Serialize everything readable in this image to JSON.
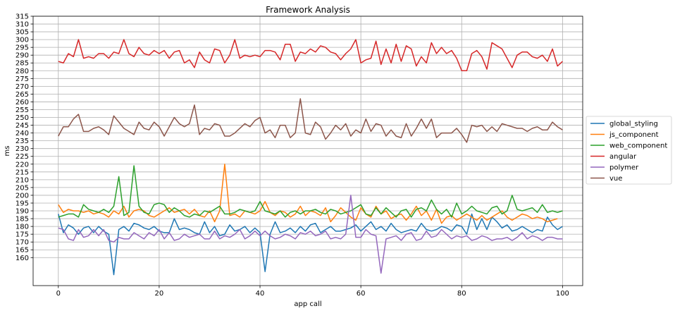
{
  "chart_data": {
    "type": "line",
    "title": "Framework Analysis",
    "xlabel": "app call",
    "ylabel": "ms",
    "xlim": [
      -5,
      104
    ],
    "ylim": [
      142,
      315
    ],
    "xticks": [
      0,
      20,
      40,
      60,
      80,
      100
    ],
    "yticks": [
      160,
      165,
      170,
      175,
      180,
      185,
      190,
      195,
      200,
      205,
      210,
      215,
      220,
      225,
      230,
      235,
      240,
      245,
      250,
      255,
      260,
      265,
      270,
      275,
      280,
      285,
      290,
      295,
      300,
      305,
      310,
      315
    ],
    "grid": true,
    "legend_position": "right",
    "series": [
      {
        "name": "global_styling",
        "color": "#1f77b4",
        "values": [
          188,
          176,
          181,
          179,
          175,
          179,
          180,
          176,
          180,
          177,
          175,
          149,
          178,
          180,
          177,
          182,
          181,
          179,
          178,
          180,
          177,
          176,
          176,
          185,
          178,
          179,
          178,
          176,
          175,
          183,
          176,
          180,
          174,
          175,
          181,
          177,
          178,
          180,
          176,
          179,
          176,
          151,
          175,
          183,
          176,
          177,
          179,
          176,
          180,
          177,
          181,
          182,
          176,
          178,
          180,
          177,
          177,
          178,
          179,
          181,
          177,
          180,
          183,
          178,
          180,
          177,
          182,
          178,
          176,
          177,
          178,
          177,
          182,
          178,
          177,
          178,
          180,
          179,
          177,
          181,
          180,
          175,
          188,
          178,
          185,
          178,
          186,
          183,
          179,
          181,
          177,
          178,
          180,
          178,
          176,
          178,
          177,
          186,
          181,
          178,
          180
        ]
      },
      {
        "name": "js_component",
        "color": "#ff7f0e",
        "values": [
          194,
          189,
          191,
          190,
          190,
          189,
          190,
          188,
          189,
          188,
          186,
          190,
          188,
          193,
          186,
          190,
          191,
          190,
          187,
          186,
          188,
          190,
          192,
          189,
          190,
          191,
          188,
          191,
          187,
          186,
          190,
          183,
          190,
          220,
          187,
          188,
          186,
          190,
          189,
          188,
          190,
          196,
          189,
          187,
          190,
          189,
          186,
          188,
          193,
          187,
          190,
          189,
          187,
          192,
          183,
          187,
          192,
          189,
          186,
          184,
          192,
          188,
          186,
          193,
          188,
          190,
          185,
          187,
          188,
          184,
          188,
          193,
          187,
          190,
          184,
          191,
          182,
          186,
          187,
          184,
          186,
          188,
          186,
          184,
          187,
          184,
          186,
          188,
          190,
          186,
          184,
          186,
          188,
          187,
          185,
          186,
          185,
          183,
          184,
          185
        ]
      },
      {
        "name": "web_component",
        "color": "#2ca02c",
        "values": [
          186,
          187,
          188,
          188,
          186,
          194,
          191,
          190,
          189,
          191,
          189,
          193,
          212,
          187,
          189,
          219,
          193,
          189,
          188,
          194,
          195,
          194,
          189,
          192,
          190,
          187,
          186,
          188,
          187,
          190,
          189,
          191,
          193,
          188,
          188,
          189,
          191,
          190,
          189,
          190,
          196,
          190,
          189,
          188,
          190,
          186,
          189,
          190,
          188,
          190,
          190,
          191,
          189,
          188,
          191,
          190,
          188,
          189,
          190,
          192,
          194,
          188,
          187,
          192,
          188,
          192,
          189,
          186,
          190,
          191,
          186,
          191,
          192,
          190,
          197,
          191,
          188,
          191,
          186,
          195,
          188,
          190,
          193,
          190,
          189,
          188,
          192,
          193,
          188,
          190,
          200,
          191,
          190,
          191,
          192,
          189,
          194,
          189,
          190,
          189,
          190
        ]
      },
      {
        "name": "angular",
        "color": "#d62728",
        "values": [
          286,
          285,
          291,
          289,
          300,
          288,
          289,
          288,
          291,
          291,
          288,
          292,
          291,
          300,
          291,
          289,
          295,
          291,
          290,
          293,
          291,
          293,
          288,
          292,
          293,
          285,
          287,
          282,
          292,
          287,
          285,
          294,
          293,
          285,
          290,
          300,
          288,
          290,
          289,
          290,
          289,
          293,
          293,
          292,
          287,
          297,
          297,
          286,
          292,
          291,
          294,
          292,
          296,
          295,
          292,
          291,
          287,
          291,
          294,
          300,
          285,
          287,
          288,
          299,
          284,
          294,
          285,
          297,
          286,
          296,
          294,
          283,
          289,
          285,
          298,
          291,
          295,
          291,
          293,
          288,
          280,
          280,
          291,
          293,
          289,
          281,
          298,
          296,
          294,
          288,
          282,
          290,
          292,
          292,
          289,
          288,
          290,
          286,
          294,
          283,
          286
        ]
      },
      {
        "name": "polymer",
        "color": "#9467bd",
        "values": [
          179,
          178,
          172,
          171,
          178,
          173,
          174,
          178,
          174,
          178,
          171,
          170,
          173,
          172,
          172,
          176,
          174,
          172,
          176,
          174,
          178,
          172,
          176,
          171,
          172,
          175,
          173,
          174,
          175,
          172,
          172,
          177,
          172,
          174,
          173,
          175,
          178,
          172,
          174,
          177,
          174,
          177,
          174,
          172,
          173,
          175,
          174,
          172,
          176,
          175,
          177,
          174,
          175,
          177,
          172,
          173,
          172,
          175,
          200,
          173,
          173,
          178,
          175,
          174,
          150,
          172,
          173,
          174,
          171,
          175,
          176,
          171,
          172,
          177,
          173,
          174,
          178,
          175,
          172,
          174,
          173,
          174,
          171,
          172,
          174,
          173,
          171,
          172,
          172,
          173,
          171,
          173,
          176,
          172,
          174,
          173,
          171,
          173,
          173,
          172,
          172
        ]
      },
      {
        "name": "vue",
        "color": "#8c564b",
        "values": [
          238,
          244,
          244,
          249,
          252,
          241,
          241,
          243,
          244,
          242,
          239,
          251,
          247,
          243,
          241,
          239,
          247,
          243,
          242,
          247,
          244,
          238,
          244,
          250,
          246,
          244,
          246,
          258,
          239,
          243,
          242,
          246,
          245,
          238,
          238,
          240,
          243,
          246,
          244,
          248,
          250,
          240,
          242,
          237,
          245,
          245,
          237,
          240,
          262,
          240,
          239,
          247,
          244,
          236,
          240,
          245,
          242,
          246,
          238,
          242,
          240,
          249,
          241,
          246,
          245,
          238,
          242,
          238,
          237,
          246,
          238,
          243,
          249,
          243,
          249,
          237,
          240,
          240,
          240,
          243,
          239,
          234,
          245,
          244,
          245,
          241,
          244,
          241,
          246,
          245,
          244,
          243,
          243,
          241,
          243,
          244,
          242,
          242,
          247,
          244,
          242
        ]
      }
    ]
  }
}
